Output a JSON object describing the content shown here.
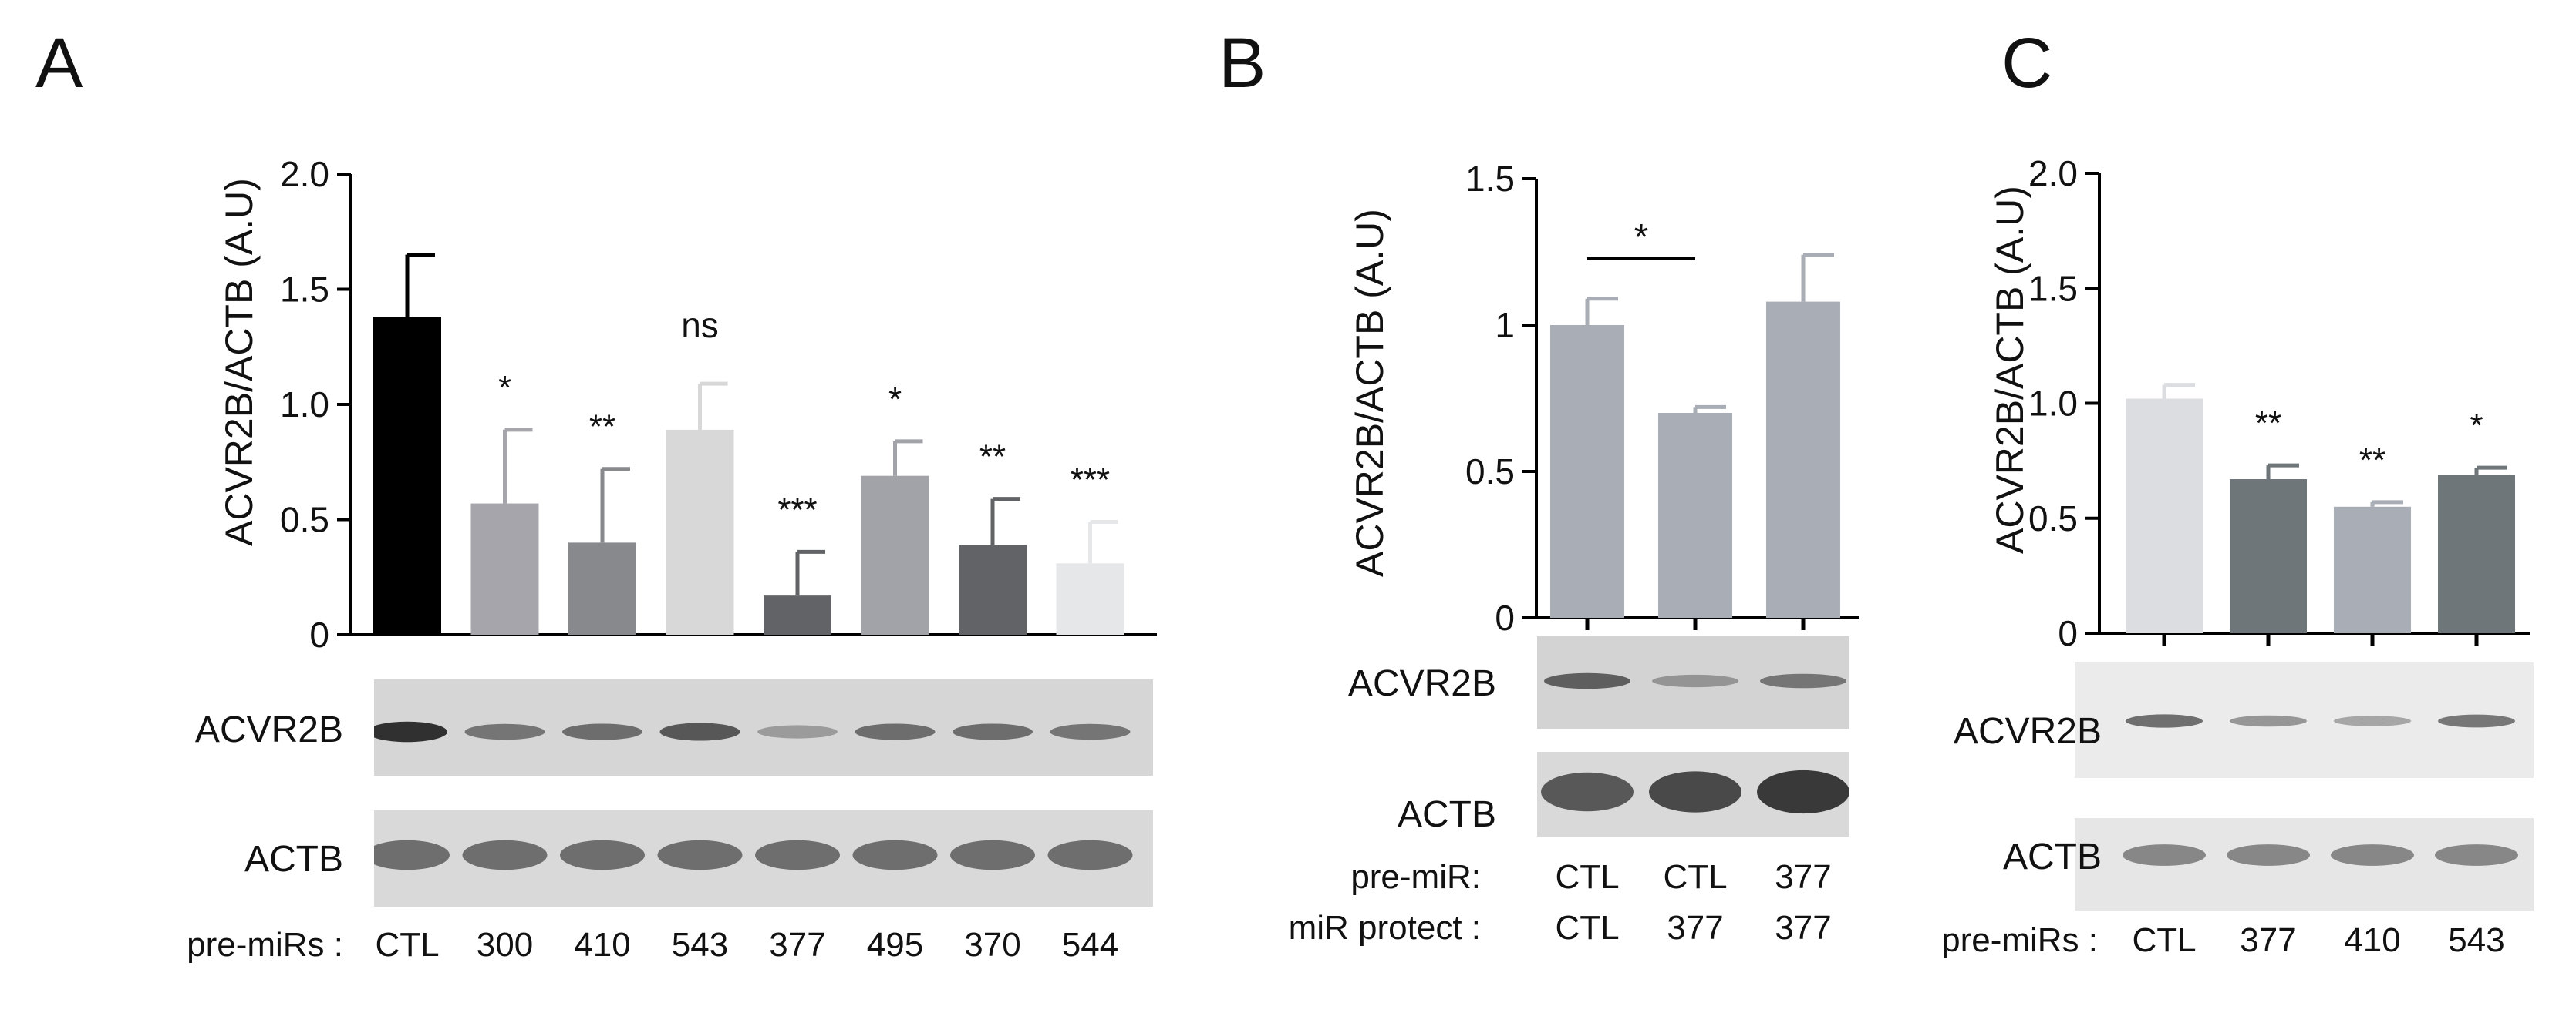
{
  "panels": [
    {
      "letter": "A",
      "chart_data": {
        "type": "bar",
        "ylabel": "ACVR2B/ACTB (A.U)",
        "ylim": [
          0,
          2.0
        ],
        "yticks": [
          "0",
          "0.5",
          "1.0",
          "1.5",
          "2.0"
        ],
        "ytick_values": [
          0,
          0.5,
          1.0,
          1.5,
          2.0
        ],
        "categories": [
          "CTL",
          "300",
          "410",
          "543",
          "377",
          "495",
          "370",
          "544"
        ],
        "values": [
          1.38,
          0.57,
          0.4,
          0.89,
          0.17,
          0.69,
          0.39,
          0.31
        ],
        "errors": [
          0.27,
          0.32,
          0.32,
          0.2,
          0.19,
          0.15,
          0.2,
          0.18
        ],
        "significance": [
          "",
          "*",
          "**",
          "ns",
          "***",
          "*",
          "**",
          "***"
        ],
        "colors": [
          "#000000",
          "#a5a5ab",
          "#88898d",
          "#d8d8d8",
          "#626366",
          "#a2a2a9",
          "#626366",
          "#e6e7e8"
        ]
      },
      "blot": {
        "rows": [
          "ACVR2B",
          "ACTB"
        ],
        "lane_row_title": "pre-miRs :",
        "lanes": [
          "CTL",
          "300",
          "410",
          "543",
          "377",
          "495",
          "370",
          "544"
        ],
        "acvr2b_intensity": [
          1.0,
          0.55,
          0.6,
          0.75,
          0.3,
          0.6,
          0.6,
          0.55
        ],
        "actb_intensity": [
          0.6,
          0.6,
          0.6,
          0.6,
          0.6,
          0.6,
          0.6,
          0.6
        ]
      }
    },
    {
      "letter": "B",
      "chart_data": {
        "type": "bar",
        "ylabel": "ACVR2B/ACTB (A.U)",
        "ylim": [
          0,
          1.5
        ],
        "yticks": [
          "0",
          "0.5",
          "1",
          "1.5"
        ],
        "ytick_values": [
          0,
          0.5,
          1.0,
          1.5
        ],
        "categories": [
          "CTL/CTL",
          "CTL/377",
          "377/377"
        ],
        "values": [
          1.0,
          0.7,
          1.08
        ],
        "errors": [
          0.09,
          0.02,
          0.16
        ],
        "comparison": {
          "from": 0,
          "to": 1,
          "label": "*"
        },
        "colors": [
          "#a9aeb6",
          "#a9aeb6",
          "#a9aeb6"
        ]
      },
      "blot": {
        "rows": [
          "ACVR2B",
          "ACTB"
        ],
        "row1_title": "pre-miR:",
        "row1_values": [
          "CTL",
          "CTL",
          "377"
        ],
        "row2_title": "miR protect :",
        "row2_values": [
          "CTL",
          "377",
          "377"
        ],
        "acvr2b_intensity": [
          0.7,
          0.35,
          0.55
        ],
        "actb_intensity": [
          0.75,
          0.85,
          0.95
        ]
      }
    },
    {
      "letter": "C",
      "chart_data": {
        "type": "bar",
        "ylabel": "ACVR2B/ACTB (A.U)",
        "ylim": [
          0,
          2.0
        ],
        "yticks": [
          "0",
          "0.5",
          "1.0",
          "1.5",
          "2.0"
        ],
        "ytick_values": [
          0,
          0.5,
          1.0,
          1.5,
          2.0
        ],
        "categories": [
          "CTL",
          "377",
          "410",
          "543"
        ],
        "values": [
          1.02,
          0.67,
          0.55,
          0.69
        ],
        "errors": [
          0.06,
          0.06,
          0.02,
          0.03
        ],
        "significance": [
          "",
          "**",
          "**",
          "*"
        ],
        "colors": [
          "#dcdde1",
          "#6f7679",
          "#a9aeb6",
          "#6f7679"
        ]
      },
      "blot": {
        "rows": [
          "ACVR2B",
          "ACTB"
        ],
        "lane_row_title": "pre-miRs :",
        "lanes": [
          "CTL",
          "377",
          "410",
          "543"
        ],
        "acvr2b_intensity": [
          0.6,
          0.35,
          0.25,
          0.55
        ],
        "actb_intensity": [
          0.45,
          0.45,
          0.45,
          0.45
        ]
      }
    }
  ]
}
